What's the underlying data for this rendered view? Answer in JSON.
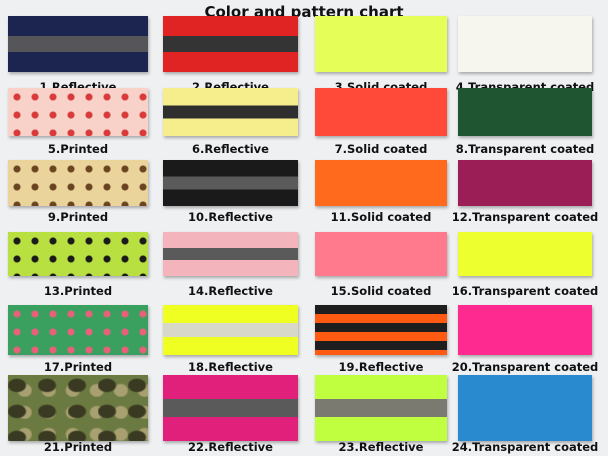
{
  "title": "Color and pattern chart",
  "swatches": [
    {
      "label": "1.Reflective",
      "pattern": "stripe",
      "color": "#1c2450",
      "stripe": "#56565a"
    },
    {
      "label": "2.Reflective",
      "pattern": "stripe",
      "color": "#e02424",
      "stripe": "#343434"
    },
    {
      "label": "3.Solid coated",
      "pattern": "solid",
      "color": "#e6ff58"
    },
    {
      "label": "4.Transparent coated",
      "pattern": "solid",
      "color": "#f6f6ee"
    },
    {
      "label": "5.Printed",
      "pattern": "print",
      "color": "#f8d2c8",
      "stripe": "#d83a3a"
    },
    {
      "label": "6.Reflective",
      "pattern": "stripe",
      "color": "#f6ee8c",
      "stripe": "#2e2e2e"
    },
    {
      "label": "7.Solid coated",
      "pattern": "solid",
      "color": "#ff4a3a"
    },
    {
      "label": "8.Transparent coated",
      "pattern": "solid",
      "color": "#1f5530"
    },
    {
      "label": "9.Printed",
      "pattern": "print",
      "color": "#ead49c",
      "stripe": "#6a4420"
    },
    {
      "label": "10.Reflective",
      "pattern": "stripe",
      "color": "#1a1a1a",
      "stripe": "#5a5a5a"
    },
    {
      "label": "11.Solid coated",
      "pattern": "solid",
      "color": "#ff6a1c"
    },
    {
      "label": "12.Transparent coated",
      "pattern": "solid",
      "color": "#9c1e56"
    },
    {
      "label": "13.Printed",
      "pattern": "print",
      "color": "#b8e040",
      "stripe": "#1a1a1a"
    },
    {
      "label": "14.Reflective",
      "pattern": "stripe",
      "color": "#f4b4bc",
      "stripe": "#5a5a5a"
    },
    {
      "label": "15.Solid coated",
      "pattern": "solid",
      "color": "#ff7a8c"
    },
    {
      "label": "16.Transparent coated",
      "pattern": "solid",
      "color": "#eeff30"
    },
    {
      "label": "17.Printed",
      "pattern": "print",
      "color": "#3aa060",
      "stripe": "#e8607a"
    },
    {
      "label": "18.Reflective",
      "pattern": "stripe",
      "color": "#f0ff22",
      "stripe": "#d8d8c8"
    },
    {
      "label": "19.Reflective",
      "pattern": "stripe2",
      "color": "#ff5a12",
      "stripe": "#1e1e1e"
    },
    {
      "label": "20.Transparent coated",
      "pattern": "solid",
      "color": "#ff2a90"
    },
    {
      "label": "21.Printed",
      "pattern": "camo",
      "color": "#6a7a40",
      "stripe": "#3a3a22"
    },
    {
      "label": "22.Reflective",
      "pattern": "stripe",
      "color": "#e0207a",
      "stripe": "#5a5a5a"
    },
    {
      "label": "23.Reflective",
      "pattern": "stripe",
      "color": "#c0ff40",
      "stripe": "#7a7a70"
    },
    {
      "label": "24.Transparent coated",
      "pattern": "solid",
      "color": "#2a8ad0"
    }
  ]
}
